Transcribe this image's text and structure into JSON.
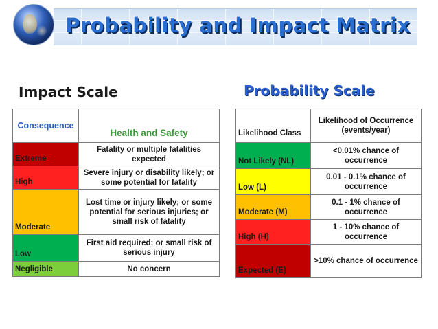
{
  "header": {
    "title": "Probability and Impact Matrix"
  },
  "impact": {
    "title": "Impact Scale",
    "col1": "Consequence",
    "col2": "Health and Safety",
    "rows": [
      {
        "level": "Extreme",
        "desc": "Fatality or multiple fatalities expected",
        "color": "#c00000"
      },
      {
        "level": "High",
        "desc": "Severe injury or disability likely; or some potential for fatality",
        "color": "#ff2020"
      },
      {
        "level": "Moderate",
        "desc": "Lost time or injury likely; or some potential for serious injuries; or small risk of fatality",
        "color": "#ffc000"
      },
      {
        "level": "Low",
        "desc": "First aid required; or small risk of serious injury",
        "color": "#00b050"
      },
      {
        "level": "Negligible",
        "desc": "No concern",
        "color": "#7ccf3a"
      }
    ]
  },
  "probability": {
    "title": "Probability Scale",
    "col1": "Likelihood Class",
    "col2": "Likelihood of Occurrence (events/year)",
    "rows": [
      {
        "level": "Not Likely (NL)",
        "desc": "<0.01% chance of occurrence",
        "color": "#00b050"
      },
      {
        "level": "Low (L)",
        "desc": "0.01 - 0.1% chance of occurrence",
        "color": "#ffff00"
      },
      {
        "level": "Moderate (M)",
        "desc": "0.1 - 1% chance of occurrence",
        "color": "#ffc000"
      },
      {
        "level": "High (H)",
        "desc": "1 - 10% chance of occurrence",
        "color": "#ff2020"
      },
      {
        "level": "Expected (E)",
        "desc": ">10% chance of occurrence",
        "color": "#c00000"
      }
    ]
  }
}
